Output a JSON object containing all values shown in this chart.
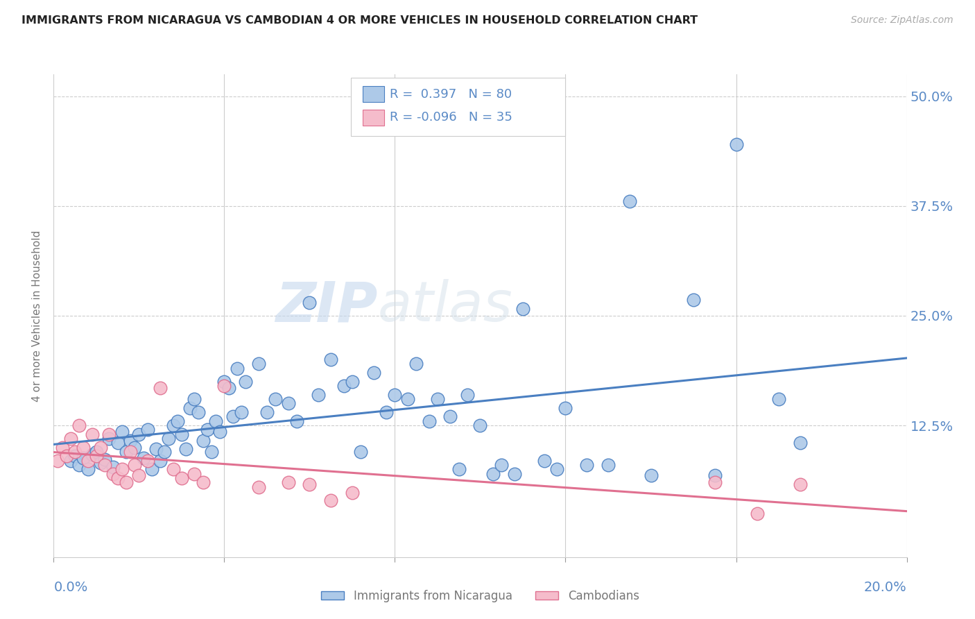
{
  "title": "IMMIGRANTS FROM NICARAGUA VS CAMBODIAN 4 OR MORE VEHICLES IN HOUSEHOLD CORRELATION CHART",
  "source": "Source: ZipAtlas.com",
  "ylabel": "4 or more Vehicles in Household",
  "ytick_labels": [
    "",
    "12.5%",
    "25.0%",
    "37.5%",
    "50.0%"
  ],
  "ytick_values": [
    0.0,
    0.125,
    0.25,
    0.375,
    0.5
  ],
  "xlim": [
    0.0,
    0.2
  ],
  "ylim": [
    -0.025,
    0.525
  ],
  "blue_R": 0.397,
  "blue_N": 80,
  "pink_R": -0.096,
  "pink_N": 35,
  "blue_color": "#adc9e8",
  "pink_color": "#f5bccb",
  "blue_line_color": "#4a7fc1",
  "pink_line_color": "#e07090",
  "legend_label_blue": "Immigrants from Nicaragua",
  "legend_label_pink": "Cambodians",
  "watermark_zip": "ZIP",
  "watermark_atlas": "atlas",
  "background_color": "#ffffff",
  "grid_color": "#cccccc",
  "title_color": "#222222",
  "source_color": "#aaaaaa",
  "axis_label_color": "#5a8ac6",
  "ylabel_color": "#777777",
  "blue_scatter_x": [
    0.004,
    0.005,
    0.006,
    0.007,
    0.008,
    0.009,
    0.01,
    0.011,
    0.012,
    0.013,
    0.014,
    0.015,
    0.016,
    0.017,
    0.018,
    0.019,
    0.02,
    0.021,
    0.022,
    0.023,
    0.024,
    0.025,
    0.026,
    0.027,
    0.028,
    0.029,
    0.03,
    0.031,
    0.032,
    0.033,
    0.034,
    0.035,
    0.036,
    0.037,
    0.038,
    0.039,
    0.04,
    0.041,
    0.042,
    0.043,
    0.044,
    0.045,
    0.048,
    0.05,
    0.052,
    0.055,
    0.057,
    0.06,
    0.062,
    0.065,
    0.068,
    0.07,
    0.072,
    0.075,
    0.078,
    0.08,
    0.083,
    0.085,
    0.088,
    0.09,
    0.093,
    0.095,
    0.097,
    0.1,
    0.103,
    0.105,
    0.108,
    0.11,
    0.115,
    0.118,
    0.12,
    0.125,
    0.13,
    0.135,
    0.14,
    0.15,
    0.155,
    0.16,
    0.17,
    0.175
  ],
  "blue_scatter_y": [
    0.085,
    0.09,
    0.08,
    0.088,
    0.075,
    0.092,
    0.095,
    0.082,
    0.086,
    0.11,
    0.078,
    0.105,
    0.118,
    0.095,
    0.108,
    0.1,
    0.115,
    0.088,
    0.12,
    0.075,
    0.098,
    0.085,
    0.095,
    0.11,
    0.125,
    0.13,
    0.115,
    0.098,
    0.145,
    0.155,
    0.14,
    0.108,
    0.12,
    0.095,
    0.13,
    0.118,
    0.175,
    0.168,
    0.135,
    0.19,
    0.14,
    0.175,
    0.195,
    0.14,
    0.155,
    0.15,
    0.13,
    0.265,
    0.16,
    0.2,
    0.17,
    0.175,
    0.095,
    0.185,
    0.14,
    0.16,
    0.155,
    0.195,
    0.13,
    0.155,
    0.135,
    0.075,
    0.16,
    0.125,
    0.07,
    0.08,
    0.07,
    0.258,
    0.085,
    0.075,
    0.145,
    0.08,
    0.08,
    0.38,
    0.068,
    0.268,
    0.068,
    0.445,
    0.155,
    0.105
  ],
  "pink_scatter_x": [
    0.001,
    0.002,
    0.003,
    0.004,
    0.005,
    0.006,
    0.007,
    0.008,
    0.009,
    0.01,
    0.011,
    0.012,
    0.013,
    0.014,
    0.015,
    0.016,
    0.017,
    0.018,
    0.019,
    0.02,
    0.022,
    0.025,
    0.028,
    0.03,
    0.033,
    0.035,
    0.04,
    0.048,
    0.055,
    0.06,
    0.065,
    0.07,
    0.155,
    0.165,
    0.175
  ],
  "pink_scatter_y": [
    0.085,
    0.1,
    0.09,
    0.11,
    0.095,
    0.125,
    0.1,
    0.085,
    0.115,
    0.09,
    0.1,
    0.08,
    0.115,
    0.07,
    0.065,
    0.075,
    0.06,
    0.095,
    0.08,
    0.068,
    0.085,
    0.168,
    0.075,
    0.065,
    0.07,
    0.06,
    0.17,
    0.055,
    0.06,
    0.058,
    0.04,
    0.048,
    0.06,
    0.025,
    0.058
  ]
}
